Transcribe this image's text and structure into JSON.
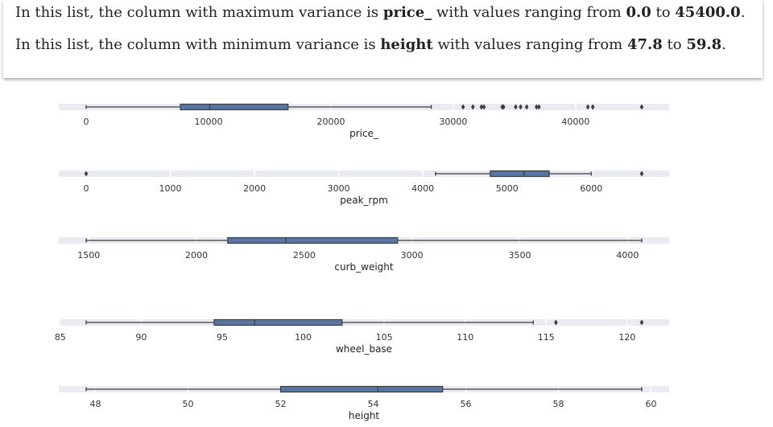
{
  "summary": {
    "max": {
      "prefix": "In this list, the column with maximum variance is ",
      "column": "price_",
      "mid": " with values ranging from ",
      "min_val": "0.0",
      "to": " to ",
      "max_val": "45400.0",
      "end": "."
    },
    "min": {
      "prefix": "In this list, the column with minimum variance is ",
      "column": "height",
      "mid": " with values ranging from ",
      "min_val": "47.8",
      "to": " to ",
      "max_val": "59.8",
      "end": "."
    }
  },
  "colors": {
    "box": "#5975a4",
    "strip": "#eaeaf2",
    "line": "#3d3d3d"
  },
  "chart_data": [
    {
      "type": "box",
      "xlabel": "price_",
      "ticks": [
        0,
        10000,
        20000,
        30000,
        40000
      ],
      "tick_labels": [
        "0",
        "10000",
        "20000",
        "30000",
        "40000"
      ],
      "whisker_low": 0,
      "q1": 7700,
      "median": 10100,
      "q3": 16500,
      "whisker_high": 28200,
      "outliers": [
        30800,
        31600,
        32300,
        32500,
        34000,
        34100,
        35100,
        35500,
        36000,
        36800,
        37000,
        41000,
        41400,
        45400
      ],
      "range": [
        0,
        45400
      ]
    },
    {
      "type": "box",
      "xlabel": "peak_rpm",
      "ticks": [
        0,
        1000,
        2000,
        3000,
        4000,
        5000,
        6000
      ],
      "tick_labels": [
        "0",
        "1000",
        "2000",
        "3000",
        "4000",
        "5000",
        "6000"
      ],
      "whisker_low": 4150,
      "q1": 4800,
      "median": 5200,
      "q3": 5500,
      "whisker_high": 6000,
      "outliers": [
        0,
        6600
      ],
      "range": [
        0,
        6600
      ]
    },
    {
      "type": "box",
      "xlabel": "curb_weight",
      "ticks": [
        1500,
        2000,
        2500,
        3000,
        3500,
        4000
      ],
      "tick_labels": [
        "1500",
        "2000",
        "2500",
        "3000",
        "3500",
        "4000"
      ],
      "whisker_low": 1488,
      "q1": 2145,
      "median": 2414,
      "q3": 2933,
      "whisker_high": 4066,
      "outliers": [],
      "range": [
        1488,
        4066
      ]
    },
    {
      "type": "box",
      "xlabel": "wheel_base",
      "ticks": [
        85,
        90,
        95,
        100,
        105,
        110,
        115,
        120
      ],
      "tick_labels": [
        "85",
        "90",
        "95",
        "100",
        "105",
        "110",
        "115",
        "120"
      ],
      "whisker_low": 86.6,
      "q1": 94.5,
      "median": 97.0,
      "q3": 102.4,
      "whisker_high": 114.2,
      "outliers": [
        115.6,
        120.9
      ],
      "range": [
        86.6,
        120.9
      ]
    },
    {
      "type": "box",
      "xlabel": "height",
      "ticks": [
        48,
        50,
        52,
        54,
        56,
        58,
        60
      ],
      "tick_labels": [
        "48",
        "50",
        "52",
        "54",
        "56",
        "58",
        "60"
      ],
      "whisker_low": 47.8,
      "q1": 52.0,
      "median": 54.1,
      "q3": 55.5,
      "whisker_high": 59.8,
      "outliers": [],
      "range": [
        47.8,
        59.8
      ]
    }
  ]
}
